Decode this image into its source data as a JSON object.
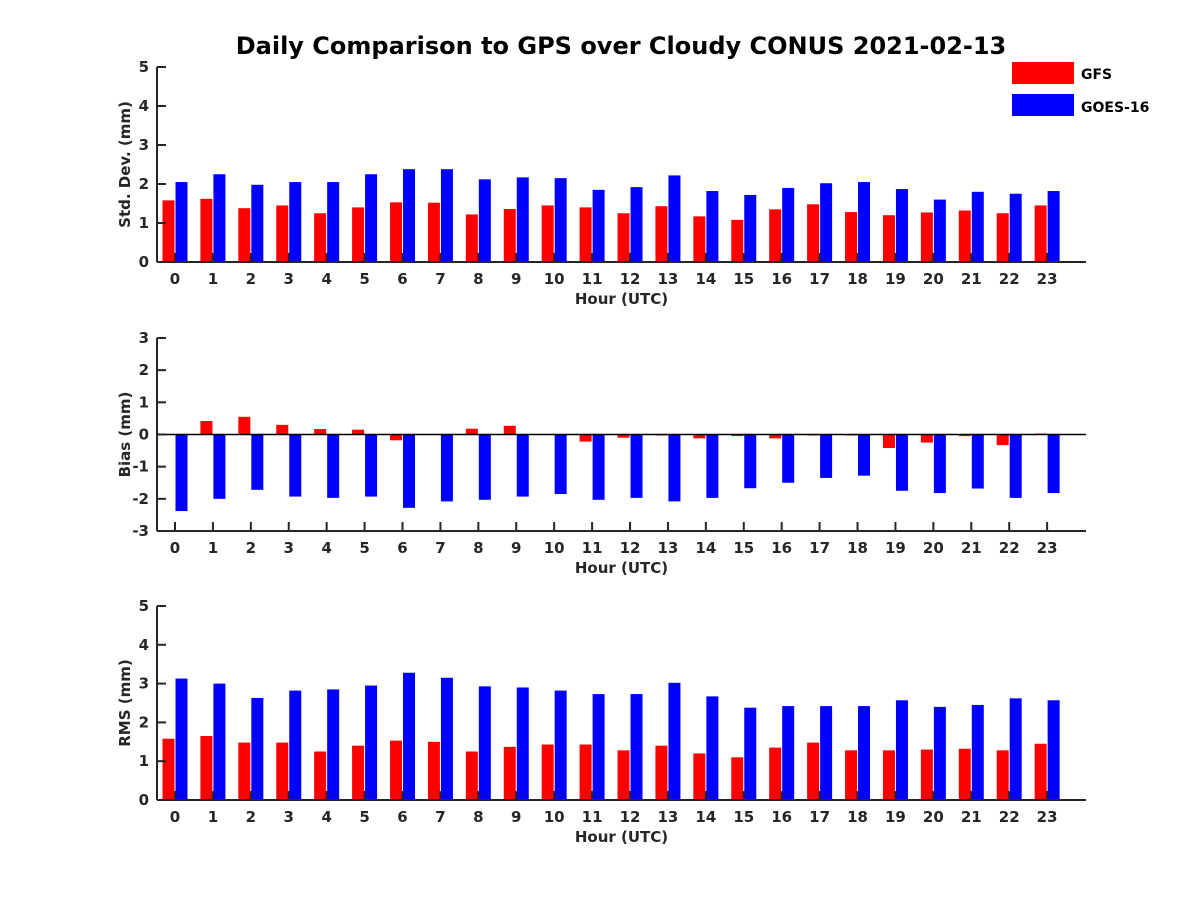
{
  "title": "Daily Comparison to GPS over Cloudy CONUS 2021-02-13",
  "colors": {
    "GFS": "#ff0000",
    "GOES-16": "#0000ff"
  },
  "legend": [
    {
      "label": "GFS",
      "color": "#ff0000"
    },
    {
      "label": "GOES-16",
      "color": "#0000ff"
    }
  ],
  "chart_data": [
    {
      "type": "bar",
      "categories": [
        "0",
        "1",
        "2",
        "3",
        "4",
        "5",
        "6",
        "7",
        "8",
        "9",
        "10",
        "11",
        "12",
        "13",
        "14",
        "15",
        "16",
        "17",
        "18",
        "19",
        "20",
        "21",
        "22",
        "23"
      ],
      "xlabel": "Hour (UTC)",
      "ylabel": "Std. Dev. (mm)",
      "ylim": [
        0,
        5
      ],
      "yticks": [
        0,
        1,
        2,
        3,
        4,
        5
      ],
      "legend_position": "top-right",
      "series": [
        {
          "name": "GFS",
          "values": [
            1.58,
            1.62,
            1.38,
            1.45,
            1.25,
            1.4,
            1.53,
            1.52,
            1.22,
            1.36,
            1.45,
            1.4,
            1.25,
            1.43,
            1.17,
            1.08,
            1.35,
            1.48,
            1.28,
            1.2,
            1.27,
            1.32,
            1.25,
            1.45
          ]
        },
        {
          "name": "GOES-16",
          "values": [
            2.05,
            2.25,
            1.98,
            2.05,
            2.05,
            2.25,
            2.38,
            2.38,
            2.12,
            2.17,
            2.15,
            1.85,
            1.92,
            2.22,
            1.82,
            1.72,
            1.9,
            2.02,
            2.05,
            1.87,
            1.6,
            1.8,
            1.75,
            1.82
          ]
        }
      ]
    },
    {
      "type": "bar",
      "categories": [
        "0",
        "1",
        "2",
        "3",
        "4",
        "5",
        "6",
        "7",
        "8",
        "9",
        "10",
        "11",
        "12",
        "13",
        "14",
        "15",
        "16",
        "17",
        "18",
        "19",
        "20",
        "21",
        "22",
        "23"
      ],
      "xlabel": "Hour (UTC)",
      "ylabel": "Bias (mm)",
      "ylim": [
        -3,
        3
      ],
      "yticks": [
        -3,
        -2,
        -1,
        0,
        1,
        2,
        3
      ],
      "series": [
        {
          "name": "GFS",
          "values": [
            0.0,
            0.42,
            0.55,
            0.3,
            0.17,
            0.15,
            -0.18,
            0.0,
            0.18,
            0.27,
            0.0,
            -0.22,
            -0.1,
            -0.03,
            -0.12,
            -0.05,
            -0.12,
            -0.03,
            -0.03,
            -0.42,
            -0.25,
            -0.05,
            -0.33,
            0.03
          ]
        },
        {
          "name": "GOES-16",
          "values": [
            -2.38,
            -2.0,
            -1.72,
            -1.93,
            -1.97,
            -1.93,
            -2.28,
            -2.08,
            -2.03,
            -1.93,
            -1.85,
            -2.03,
            -1.97,
            -2.08,
            -1.97,
            -1.67,
            -1.5,
            -1.35,
            -1.28,
            -1.75,
            -1.82,
            -1.68,
            -1.97,
            -1.82
          ]
        }
      ]
    },
    {
      "type": "bar",
      "categories": [
        "0",
        "1",
        "2",
        "3",
        "4",
        "5",
        "6",
        "7",
        "8",
        "9",
        "10",
        "11",
        "12",
        "13",
        "14",
        "15",
        "16",
        "17",
        "18",
        "19",
        "20",
        "21",
        "22",
        "23"
      ],
      "xlabel": "Hour (UTC)",
      "ylabel": "RMS (mm)",
      "ylim": [
        0,
        5
      ],
      "yticks": [
        0,
        1,
        2,
        3,
        4,
        5
      ],
      "series": [
        {
          "name": "GFS",
          "values": [
            1.58,
            1.65,
            1.48,
            1.48,
            1.25,
            1.4,
            1.53,
            1.5,
            1.25,
            1.37,
            1.43,
            1.43,
            1.28,
            1.4,
            1.2,
            1.1,
            1.35,
            1.48,
            1.28,
            1.28,
            1.3,
            1.32,
            1.28,
            1.45
          ]
        },
        {
          "name": "GOES-16",
          "values": [
            3.13,
            3.0,
            2.63,
            2.82,
            2.85,
            2.95,
            3.28,
            3.15,
            2.93,
            2.9,
            2.82,
            2.73,
            2.73,
            3.02,
            2.67,
            2.38,
            2.42,
            2.42,
            2.42,
            2.57,
            2.4,
            2.45,
            2.62,
            2.57
          ]
        }
      ]
    }
  ]
}
